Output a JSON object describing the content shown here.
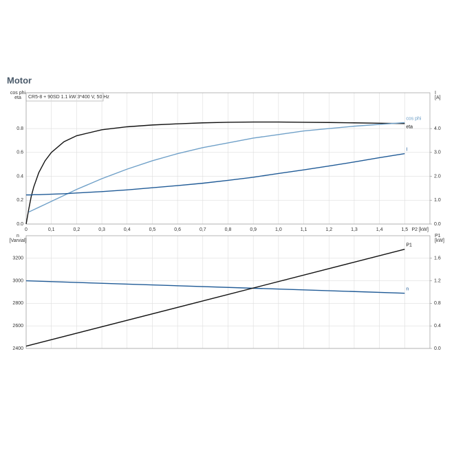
{
  "header": {
    "title": "Motor"
  },
  "chart_data": [
    {
      "type": "line",
      "legend_text": "CR5-8 + 90SD   1.1 kW   3*400 V, 50 Hz",
      "ylabel": [
        "cos phi",
        "eta"
      ],
      "y2label": [
        "I",
        "[A]"
      ],
      "xlabel": "P2 [kW]",
      "xlim": [
        0,
        1.6
      ],
      "xticks": [
        0,
        {
          "value": 0.1,
          "label": "0,1"
        },
        {
          "value": 0.2,
          "label": "0,2"
        },
        {
          "value": 0.3,
          "label": "0,3"
        },
        {
          "value": 0.4,
          "label": "0,4"
        },
        {
          "value": 0.5,
          "label": "0,5"
        },
        {
          "value": 0.6,
          "label": "0,6"
        },
        {
          "value": 0.7,
          "label": "0,7"
        },
        {
          "value": 0.8,
          "label": "0,8"
        },
        {
          "value": 0.9,
          "label": "0,9"
        },
        {
          "value": 1.0,
          "label": "1,0"
        },
        {
          "value": 1.1,
          "label": "1,1"
        },
        {
          "value": 1.2,
          "label": "1,2"
        },
        {
          "value": 1.3,
          "label": "1,3"
        },
        {
          "value": 1.4,
          "label": "1,4"
        },
        {
          "value": 1.5,
          "label": "1,5"
        }
      ],
      "ylim": [
        0,
        1.1
      ],
      "yticks": [
        {
          "value": 0,
          "label": "0.0"
        },
        0.2,
        0.4,
        0.6,
        0.8
      ],
      "y2lim": [
        0,
        5.5
      ],
      "y2ticks": [
        {
          "value": 0,
          "label": "0.0"
        },
        {
          "value": 1,
          "label": "1.0"
        },
        {
          "value": 2,
          "label": "2.0"
        },
        {
          "value": 3,
          "label": "3.0"
        },
        {
          "value": 4,
          "label": "4.0"
        }
      ],
      "grid": true,
      "x": [
        0,
        0.01,
        0.02,
        0.03,
        0.05,
        0.075,
        0.1,
        0.15,
        0.2,
        0.3,
        0.4,
        0.5,
        0.6,
        0.7,
        0.8,
        0.9,
        1.0,
        1.1,
        1.2,
        1.3,
        1.4,
        1.5
      ],
      "series": [
        {
          "name": "eta",
          "color": "#111111",
          "values": [
            0,
            0.12,
            0.23,
            0.31,
            0.43,
            0.53,
            0.6,
            0.69,
            0.74,
            0.79,
            0.815,
            0.83,
            0.84,
            0.848,
            0.853,
            0.855,
            0.855,
            0.853,
            0.851,
            0.848,
            0.845,
            0.842
          ]
        },
        {
          "name": "cos phi",
          "color": "#6fa0c8",
          "values": [
            null,
            0.1,
            0.11,
            0.12,
            0.14,
            0.165,
            0.19,
            0.24,
            0.29,
            0.38,
            0.46,
            0.53,
            0.59,
            0.64,
            0.68,
            0.72,
            0.75,
            0.78,
            0.8,
            0.82,
            0.835,
            0.85
          ]
        },
        {
          "name": "I",
          "color": "#1f5a96",
          "axis": "y2",
          "values": [
            1.22,
            1.22,
            1.22,
            1.23,
            1.23,
            1.24,
            1.25,
            1.27,
            1.3,
            1.36,
            1.43,
            1.52,
            1.61,
            1.71,
            1.83,
            1.96,
            2.12,
            2.27,
            2.43,
            2.6,
            2.78,
            2.95
          ]
        }
      ]
    },
    {
      "type": "line",
      "ylabel": [
        "n",
        "[Varvial]"
      ],
      "y2label": [
        "P1",
        "[kW]"
      ],
      "xlim": [
        0,
        1.6
      ],
      "ylim": [
        2400,
        3400
      ],
      "yticks": [
        2400,
        2600,
        2800,
        3000,
        3200
      ],
      "y2lim": [
        0,
        2.0
      ],
      "y2ticks": [
        {
          "value": 0,
          "label": "0.0"
        },
        0.4,
        0.8,
        1.2,
        1.6
      ],
      "grid": true,
      "x": [
        0,
        1.5
      ],
      "series": [
        {
          "name": "n",
          "color": "#1f5a96",
          "values": [
            3000,
            2890
          ]
        },
        {
          "name": "P1",
          "color": "#111111",
          "axis": "y2",
          "values": [
            0.04,
            1.76
          ]
        }
      ]
    }
  ]
}
